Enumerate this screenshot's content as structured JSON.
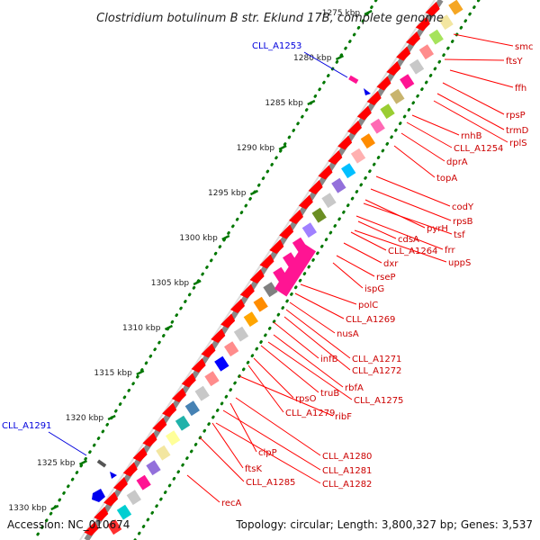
{
  "title": "Clostridium botulinum B str. Eklund 17B, complete genome",
  "footer": {
    "accession": "Accession: NC_010674",
    "summary": "Topology: circular; Length: 3,800,327 bp; Genes: 3,537"
  },
  "kbp_ticks": [
    {
      "label": "1275 kbp"
    },
    {
      "label": "1280 kbp"
    },
    {
      "label": "1285 kbp"
    },
    {
      "label": "1290 kbp"
    },
    {
      "label": "1295 kbp"
    },
    {
      "label": "1300 kbp"
    },
    {
      "label": "1305 kbp"
    },
    {
      "label": "1310 kbp"
    },
    {
      "label": "1315 kbp"
    },
    {
      "label": "1320 kbp"
    },
    {
      "label": "1325 kbp"
    },
    {
      "label": "1330 kbp"
    }
  ],
  "left_genes": [
    {
      "label": "CLL_A1253",
      "color": "#0000dd"
    },
    {
      "label": "CLL_A1291",
      "color": "#0000dd"
    }
  ],
  "right_genes": [
    {
      "label": "smc"
    },
    {
      "label": "ftsY"
    },
    {
      "label": "ffh"
    },
    {
      "label": "rpsP"
    },
    {
      "label": "trmD"
    },
    {
      "label": "rplS"
    },
    {
      "label": "rnhB"
    },
    {
      "label": "CLL_A1254"
    },
    {
      "label": "dprA"
    },
    {
      "label": "topA"
    },
    {
      "label": "codY"
    },
    {
      "label": "rpsB"
    },
    {
      "label": "pyrH"
    },
    {
      "label": "tsf"
    },
    {
      "label": "frr"
    },
    {
      "label": "cdsA"
    },
    {
      "label": "CLL_A1264"
    },
    {
      "label": "uppS"
    },
    {
      "label": "dxr"
    },
    {
      "label": "rseP"
    },
    {
      "label": "ispG"
    },
    {
      "label": "polC"
    },
    {
      "label": "CLL_A1269"
    },
    {
      "label": "nusA"
    },
    {
      "label": "CLL_A1271"
    },
    {
      "label": "infB"
    },
    {
      "label": "CLL_A1272"
    },
    {
      "label": "rbfA"
    },
    {
      "label": "truB"
    },
    {
      "label": "CLL_A1275"
    },
    {
      "label": "rpsO"
    },
    {
      "label": "CLL_A1279"
    },
    {
      "label": "ribF"
    },
    {
      "label": "clpP"
    },
    {
      "label": "CLL_A1280"
    },
    {
      "label": "ftsK"
    },
    {
      "label": "CLL_A1281"
    },
    {
      "label": "CLL_A1285"
    },
    {
      "label": "CLL_A1282"
    },
    {
      "label": "recA"
    }
  ],
  "colors": {
    "gene_arrow": "#ff0000",
    "label_line": "#ff0000",
    "label_text": "#cc0000",
    "tick": "#007700",
    "backbone": "#888888",
    "left_label": "#0000dd"
  }
}
